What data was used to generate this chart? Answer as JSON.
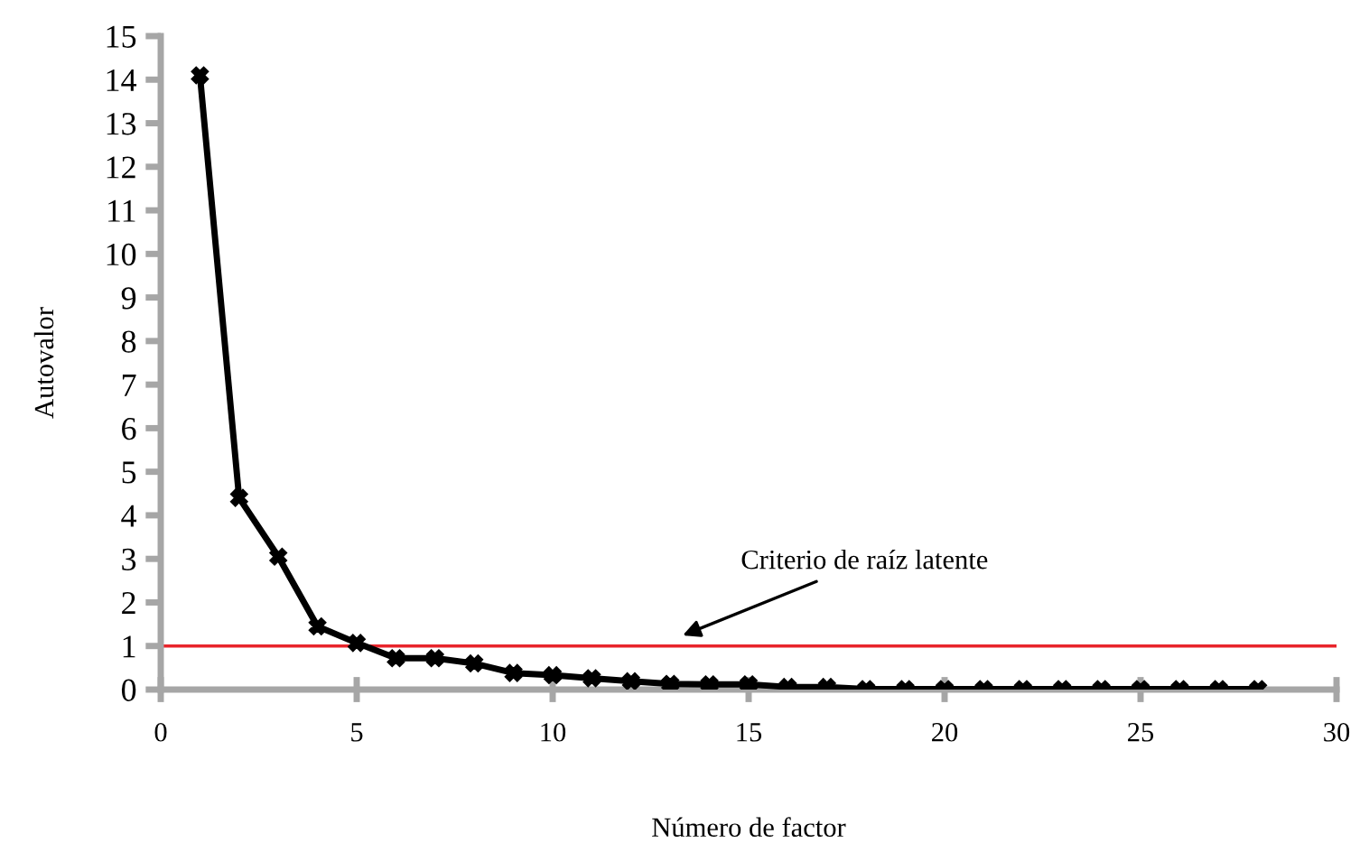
{
  "chart_data": {
    "type": "line",
    "xlabel": "Número de factor",
    "ylabel": "Autovalor",
    "x": [
      1,
      2,
      3,
      4,
      5,
      6,
      7,
      8,
      9,
      10,
      11,
      12,
      13,
      14,
      15,
      16,
      17,
      18,
      19,
      20,
      21,
      22,
      23,
      24,
      25,
      26,
      27,
      28
    ],
    "series": [
      {
        "color": "#000000",
        "values": [
          14.1,
          4.4,
          3.05,
          1.45,
          1.07,
          0.72,
          0.72,
          0.6,
          0.38,
          0.33,
          0.26,
          0.19,
          0.13,
          0.12,
          0.12,
          0.06,
          0.06,
          0.01,
          0.01,
          0.01,
          0.01,
          0.01,
          0.01,
          0.01,
          0.01,
          0.01,
          0.01,
          0.01
        ]
      }
    ],
    "marker": "cross",
    "line_style": "solid",
    "xlim": [
      0,
      30
    ],
    "xticks": [
      0,
      5,
      10,
      15,
      20,
      25,
      30
    ],
    "ylim": [
      0,
      15
    ],
    "yticks": [
      0,
      1,
      2,
      3,
      4,
      5,
      6,
      7,
      8,
      9,
      10,
      11,
      12,
      13,
      14,
      15
    ],
    "ref_lines": [
      {
        "axis": "y",
        "value": 1,
        "color": "#e8242b"
      }
    ],
    "annotations": [
      {
        "text": "Criterio de raíz latente",
        "x": 13.2,
        "y": 1.2
      }
    ],
    "grid": false,
    "legend": false
  }
}
